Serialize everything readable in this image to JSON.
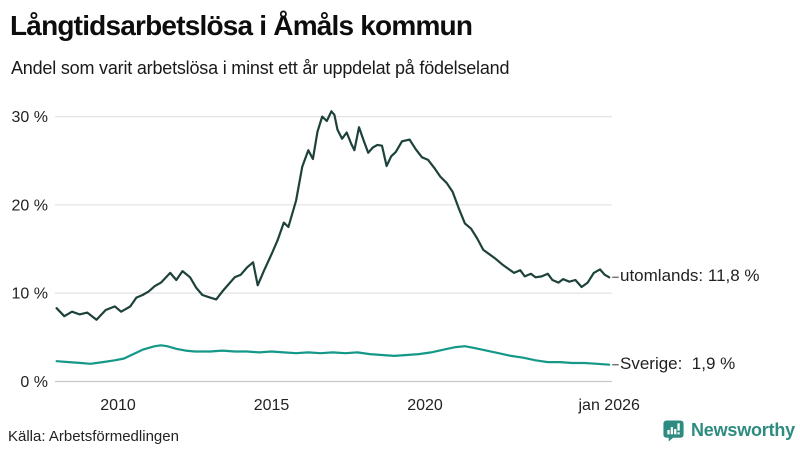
{
  "header": {
    "title": "Långtidsarbetslösa i Åmåls kommun",
    "subtitle": "Andel som varit arbetslösa i minst ett år uppdelat på födelseland"
  },
  "footer": {
    "source": "Källa: Arbetsförmedlingen",
    "brand": "Newsworthy"
  },
  "chart_data": {
    "type": "line",
    "title": "Långtidsarbetslösa i Åmåls kommun",
    "subtitle": "Andel som varit arbetslösa i minst ett år uppdelat på födelseland",
    "xlabel": "",
    "ylabel": "",
    "unit": "%",
    "xlim": [
      2008,
      2026.2
    ],
    "ylim": [
      0,
      31
    ],
    "grid": "horizontal",
    "grid_color": "#e4e4e4",
    "baseline_color": "#c6c6c6",
    "connector_color": "#777777",
    "y_ticks": [
      {
        "value": 0,
        "label": "0 %"
      },
      {
        "value": 10,
        "label": "10 %"
      },
      {
        "value": 20,
        "label": "20 %"
      },
      {
        "value": 30,
        "label": "30 %"
      }
    ],
    "x_ticks": [
      {
        "value": 2010,
        "label": "2010"
      },
      {
        "value": 2015,
        "label": "2015"
      },
      {
        "value": 2020,
        "label": "2020"
      },
      {
        "value": 2026,
        "label": "jan 2026"
      }
    ],
    "series": [
      {
        "name": "utomlands",
        "label": "utomlands: 11,8 %",
        "last_value": 11.8,
        "color": "#1e423b",
        "points": [
          [
            2008.0,
            8.3
          ],
          [
            2008.25,
            7.4
          ],
          [
            2008.5,
            7.9
          ],
          [
            2008.75,
            7.6
          ],
          [
            2009.0,
            7.8
          ],
          [
            2009.3,
            7.0
          ],
          [
            2009.6,
            8.1
          ],
          [
            2009.9,
            8.5
          ],
          [
            2010.1,
            7.9
          ],
          [
            2010.4,
            8.5
          ],
          [
            2010.6,
            9.5
          ],
          [
            2010.8,
            9.8
          ],
          [
            2011.0,
            10.2
          ],
          [
            2011.2,
            10.8
          ],
          [
            2011.4,
            11.2
          ],
          [
            2011.7,
            12.3
          ],
          [
            2011.9,
            11.5
          ],
          [
            2012.1,
            12.5
          ],
          [
            2012.35,
            11.8
          ],
          [
            2012.55,
            10.6
          ],
          [
            2012.75,
            9.8
          ],
          [
            2013.0,
            9.5
          ],
          [
            2013.2,
            9.3
          ],
          [
            2013.4,
            10.2
          ],
          [
            2013.6,
            11.0
          ],
          [
            2013.8,
            11.8
          ],
          [
            2014.0,
            12.1
          ],
          [
            2014.2,
            12.9
          ],
          [
            2014.4,
            13.5
          ],
          [
            2014.55,
            10.9
          ],
          [
            2014.75,
            12.5
          ],
          [
            2015.0,
            14.4
          ],
          [
            2015.2,
            16.0
          ],
          [
            2015.4,
            18.0
          ],
          [
            2015.55,
            17.5
          ],
          [
            2015.8,
            20.5
          ],
          [
            2016.0,
            24.3
          ],
          [
            2016.2,
            26.2
          ],
          [
            2016.35,
            25.2
          ],
          [
            2016.5,
            28.3
          ],
          [
            2016.65,
            30.0
          ],
          [
            2016.8,
            29.5
          ],
          [
            2016.95,
            30.6
          ],
          [
            2017.05,
            30.2
          ],
          [
            2017.15,
            28.5
          ],
          [
            2017.3,
            27.5
          ],
          [
            2017.45,
            28.2
          ],
          [
            2017.6,
            26.9
          ],
          [
            2017.7,
            26.2
          ],
          [
            2017.85,
            28.8
          ],
          [
            2018.0,
            27.3
          ],
          [
            2018.15,
            25.9
          ],
          [
            2018.3,
            26.5
          ],
          [
            2018.45,
            26.8
          ],
          [
            2018.6,
            26.7
          ],
          [
            2018.75,
            24.4
          ],
          [
            2018.9,
            25.5
          ],
          [
            2019.05,
            26.0
          ],
          [
            2019.25,
            27.2
          ],
          [
            2019.5,
            27.4
          ],
          [
            2019.7,
            26.3
          ],
          [
            2019.9,
            25.4
          ],
          [
            2020.1,
            25.1
          ],
          [
            2020.3,
            24.2
          ],
          [
            2020.5,
            23.2
          ],
          [
            2020.7,
            22.5
          ],
          [
            2020.9,
            21.5
          ],
          [
            2021.1,
            19.6
          ],
          [
            2021.3,
            17.9
          ],
          [
            2021.5,
            17.3
          ],
          [
            2021.7,
            16.2
          ],
          [
            2021.9,
            14.9
          ],
          [
            2022.1,
            14.4
          ],
          [
            2022.3,
            13.9
          ],
          [
            2022.5,
            13.3
          ],
          [
            2022.7,
            12.8
          ],
          [
            2022.9,
            12.3
          ],
          [
            2023.1,
            12.6
          ],
          [
            2023.25,
            11.9
          ],
          [
            2023.45,
            12.2
          ],
          [
            2023.6,
            11.8
          ],
          [
            2023.8,
            11.9
          ],
          [
            2024.0,
            12.2
          ],
          [
            2024.15,
            11.5
          ],
          [
            2024.35,
            11.2
          ],
          [
            2024.5,
            11.6
          ],
          [
            2024.7,
            11.3
          ],
          [
            2024.9,
            11.5
          ],
          [
            2025.1,
            10.7
          ],
          [
            2025.3,
            11.2
          ],
          [
            2025.5,
            12.3
          ],
          [
            2025.7,
            12.7
          ],
          [
            2025.85,
            12.1
          ],
          [
            2026.0,
            11.8
          ]
        ]
      },
      {
        "name": "Sverige",
        "label": "Sverige:  1,9 %",
        "last_value": 1.9,
        "color": "#149888",
        "points": [
          [
            2008.0,
            2.3
          ],
          [
            2008.4,
            2.2
          ],
          [
            2008.8,
            2.1
          ],
          [
            2009.1,
            2.0
          ],
          [
            2009.5,
            2.2
          ],
          [
            2009.9,
            2.4
          ],
          [
            2010.2,
            2.6
          ],
          [
            2010.5,
            3.1
          ],
          [
            2010.8,
            3.6
          ],
          [
            2011.0,
            3.8
          ],
          [
            2011.2,
            4.0
          ],
          [
            2011.4,
            4.1
          ],
          [
            2011.6,
            4.0
          ],
          [
            2011.9,
            3.7
          ],
          [
            2012.2,
            3.5
          ],
          [
            2012.5,
            3.4
          ],
          [
            2013.0,
            3.4
          ],
          [
            2013.4,
            3.5
          ],
          [
            2013.8,
            3.4
          ],
          [
            2014.2,
            3.4
          ],
          [
            2014.6,
            3.3
          ],
          [
            2015.0,
            3.4
          ],
          [
            2015.4,
            3.3
          ],
          [
            2015.8,
            3.2
          ],
          [
            2016.2,
            3.3
          ],
          [
            2016.6,
            3.2
          ],
          [
            2017.0,
            3.3
          ],
          [
            2017.4,
            3.2
          ],
          [
            2017.8,
            3.3
          ],
          [
            2018.2,
            3.1
          ],
          [
            2018.6,
            3.0
          ],
          [
            2019.0,
            2.9
          ],
          [
            2019.4,
            3.0
          ],
          [
            2019.8,
            3.1
          ],
          [
            2020.2,
            3.3
          ],
          [
            2020.6,
            3.6
          ],
          [
            2021.0,
            3.9
          ],
          [
            2021.3,
            4.0
          ],
          [
            2021.6,
            3.8
          ],
          [
            2022.0,
            3.5
          ],
          [
            2022.4,
            3.2
          ],
          [
            2022.8,
            2.9
          ],
          [
            2023.2,
            2.7
          ],
          [
            2023.6,
            2.4
          ],
          [
            2024.0,
            2.2
          ],
          [
            2024.4,
            2.2
          ],
          [
            2024.8,
            2.1
          ],
          [
            2025.2,
            2.1
          ],
          [
            2025.6,
            2.0
          ],
          [
            2026.0,
            1.9
          ]
        ]
      }
    ],
    "legend_position": "right-of-line-end"
  }
}
